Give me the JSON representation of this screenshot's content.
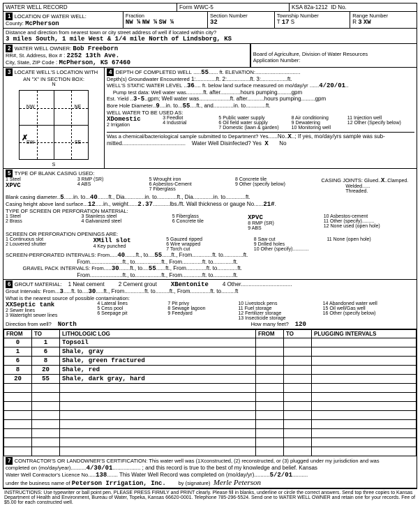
{
  "header": {
    "title": "WATER WELL RECORD",
    "form": "Form WWC-5",
    "ksa": "KSA 82a-1212",
    "id_label": "ID No.",
    "section_number_label": "Section Number",
    "section_number": "32",
    "township_label": "Township Number",
    "township_t": "T",
    "township_val": "17",
    "township_s": "S",
    "range_label": "Range Number",
    "range_r": "R",
    "range_val": "3",
    "range_ew": "XW"
  },
  "loc": {
    "section_label": "LOCATION OF WATER WELL:",
    "county_label": "County:",
    "county": "McPherson",
    "fraction_label": "Fraction",
    "frac1": "NW ¼",
    "frac2": "NW ¼",
    "frac3": "SW ¼",
    "direction_label": "Distance and direction from nearest town or city street address of well if located within city?",
    "direction": "3 miles South, 1 mile West & 1/4 mile North of Lindsborg, KS"
  },
  "owner": {
    "label": "WATER WELL OWNER:",
    "name": "Bob Freeborn",
    "addr_label": "RR#, St. Address, Box #",
    "addr": "2252 13th Ave.",
    "city_label": "City, State, ZIP Code",
    "city": "McPherson, KS   67460",
    "board": "Board of Agriculture, Division of Water Resources",
    "app_label": "Application Number:"
  },
  "sec3": {
    "label": "LOCATE WELL'S LOCATION WITH",
    "sub": "AN \"X\" IN SECTION BOX:",
    "n": "N",
    "s": "S",
    "e": "E",
    "w": "W",
    "nw": "NW",
    "ne": "NE",
    "sw": "SW",
    "se": "SE",
    "mile": "1 Mile"
  },
  "depth": {
    "label": "DEPTH OF COMPLETED WELL",
    "val": "55",
    "ft": "ft. ELEVATION:",
    "gw_label": "Depth(s) Groundwater Encountered",
    "gw2_label": "ft. 2:",
    "gw3_label": "ft. 3:",
    "gw_ft": "ft.",
    "static_label": "WELL'S STATIC WATER LEVEL",
    "static": "36",
    "static_after": "ft. below land surface measured on mo/day/yr",
    "static_date": "4/20/01",
    "pump_label": "Pump test data:  Well water was",
    "pump_after": "ft. after",
    "pump_hours": "hours pumping",
    "gpm": "gpm",
    "est_label": "Est. Yield",
    "est": "3-5",
    "est_unit": "gpm; Well water was",
    "bore_label": "Bore Hole Diameter",
    "bore1": "9",
    "bore_in": "in. to",
    "bore2": "55",
    "bore_ft": "ft., and",
    "bore_in2": "in. to",
    "bore_ft2": "ft.",
    "use_label": "WELL WATER TO BE USED AS:",
    "uses": [
      "XDomestic",
      "2 Irrigation",
      "3 Feedlot",
      "4 Industrial",
      "5 Public water supply",
      "6 Oil field water supply",
      "7 Domestic (lawn & garden)",
      "8 Air conditioning",
      "9 Dewatering",
      "10 Monitoring well",
      "11 Injection well",
      "12 Other (Specify below)"
    ],
    "chem_label": "Was a chemical/bacteriological sample submitted to Department?  Yes",
    "chem_no": "No",
    "chem_x": "X",
    "chem_after": "; If yes, mo/day/yrs sample was sub-",
    "mitted": "mitted",
    "disinfect": "Water Well Disinfected?  Yes",
    "disinfect_x": "X",
    "disinfect_no": "No"
  },
  "casing": {
    "label": "TYPE OF BLANK CASING USED:",
    "types": [
      "1 Steel",
      "XPVC",
      "3 RMP (SR)",
      "4 ABS",
      "5 Wrought iron",
      "6 Asbestos-Cement",
      "7 Fiberglass",
      "8 Concrete tile",
      "9 Other (specify below)"
    ],
    "joints_label": "CASING JOINTS: Glued",
    "joints_x": "X",
    "joints_after": "Clamped",
    "welded": "Welded",
    "threaded": "Threaded.",
    "dia_label": "Blank casing diameter",
    "dia": "5",
    "dia_in": "in. to",
    "dia_to": "40",
    "dia_ft": "ft., Dia",
    "dia_ft2": "ft., Dia",
    "dia_in2": "in. to",
    "dia_ft3": "ft.",
    "height_label": "Casing height above land surface",
    "height": "12",
    "height_in": "in., weight",
    "weight": "2.37",
    "lbs": "lbs./ft. Wall thickness or gauge No.",
    "gauge": "21#"
  },
  "screen": {
    "label": "TYPE OF SCREEN OR PERFORATION MATERIAL:",
    "types": [
      "1 Steel",
      "2 Brass",
      "3 Stainless steel",
      "4 Galvanized steel",
      "5 Fiberglass",
      "6 Concrete tile",
      "XPVC",
      "8 RMP (SR)",
      "9 ABS",
      "10 Asbestos-cement",
      "11 Other (specify)",
      "12 None used (open hole)"
    ],
    "open_label": "SCREEN OR PERFORATION OPENINGS ARE:",
    "opens": [
      "1 Continuous slot",
      "2 Louvered shutter",
      "XMill slot",
      "4 Key punched",
      "5 Gauzed ripped",
      "6 Wire wrapped",
      "7 Torch cut",
      "8 Saw cut",
      "9 Drilled holes",
      "10 Other (specify)",
      "11 None (open hole)"
    ],
    "perf_label": "SCREEN-PERFORATED INTERVALS: From",
    "perf1": "40",
    "perf_to": "ft., to",
    "perf2": "55",
    "perf_ft": "ft., From",
    "perf_ft2": "ft. to",
    "perf_ft3": "ft.",
    "from2": "From",
    "ft_to": "ft., to",
    "gravel_label": "GRAVEL PACK INTERVALS: From",
    "grav1": "30",
    "grav2": "55"
  },
  "grout": {
    "label": "GROUT MATERIAL:",
    "types": [
      "1 Neat cement",
      "2 Cement grout",
      "XBentonite",
      "4 Other"
    ],
    "int_label": "Grout Intervals:  From",
    "int1": "3",
    "int_to": "ft. to",
    "int2": "30",
    "int_ft": "ft., From",
    "int_ft2": "ft. to",
    "int_ft3": "ft.",
    "contam_label": "What is the nearest source of possible contamination:",
    "contams": [
      "XXSeptic tank",
      "2 Sewer lines",
      "3 Watertight sewer lines",
      "4 Lateral lines",
      "5 Cess pool",
      "6 Seepage pit",
      "7 Pit privy",
      "8 Sewage lagoon",
      "9 Feedyard",
      "10 Livestock pens",
      "11 Fuel storage",
      "12 Fertilizer storage",
      "13 Insecticide storage",
      "14 Abandoned water well",
      "15 Oil well/Gas well",
      "16 Other (specify below)"
    ],
    "dir_label": "Direction from well?",
    "dir": "North",
    "feet_label": "How many feet?",
    "feet": "120"
  },
  "log": {
    "headers": [
      "FROM",
      "TO",
      "LITHOLOGIC LOG",
      "FROM",
      "TO",
      "PLUGGING INTERVALS"
    ],
    "rows": [
      [
        "0",
        "1",
        "Topsoil",
        "",
        "",
        ""
      ],
      [
        "1",
        "6",
        "Shale, gray",
        "",
        "",
        ""
      ],
      [
        "6",
        "8",
        "Shale, green fractured",
        "",
        "",
        ""
      ],
      [
        "8",
        "20",
        "Shale, red",
        "",
        "",
        ""
      ],
      [
        "20",
        "55",
        "Shale, dark gray, hard",
        "",
        "",
        ""
      ],
      [
        "",
        "",
        "",
        "",
        "",
        ""
      ],
      [
        "",
        "",
        "",
        "",
        "",
        ""
      ],
      [
        "",
        "",
        "",
        "",
        "",
        ""
      ],
      [
        "",
        "",
        "",
        "",
        "",
        ""
      ],
      [
        "",
        "",
        "",
        "",
        "",
        ""
      ],
      [
        "",
        "",
        "",
        "",
        "",
        ""
      ],
      [
        "",
        "",
        "",
        "",
        "",
        ""
      ],
      [
        "",
        "",
        "",
        "",
        "",
        ""
      ]
    ]
  },
  "cert": {
    "label": "CONTRACTOR'S OR LANDOWNER'S CERTIFICATION: This water well was (1Xconstructed, (2) reconstructed, or (3) plugged under my jurisdiction and was",
    "completed_label": "completed on (mo/day/year)",
    "completed": "4/30/01",
    "after": " ; and this record is true to the best of my knowledge and belief. Kansas",
    "lic_label": "Water Well Contractor's Licence No.",
    "lic": "138",
    "rec_label": ". This Water Well Record was completed on (mo/day/yr)",
    "rec_date": "5/2/01",
    "bus_label": "under the business name of",
    "bus": "Peterson Irrigation, Inc.",
    "sig_label": "by (signature)",
    "sig": "Merle Peterson"
  },
  "instructions": "INSTRUCTIONS: Use typewriter or ball point pen. PLEASE PRESS FIRMLY and PRINT clearly. Please fill in blanks, underline or circle the correct answers. Send top three copies to Kansas Department of Health and Environment, Bureau of Water, Topeka, Kansas 66620-0001. Telephone 785-296-5524. Send one to WATER WELL OWNER and retain one for your records. Fee of $5.00 for each constructed well."
}
